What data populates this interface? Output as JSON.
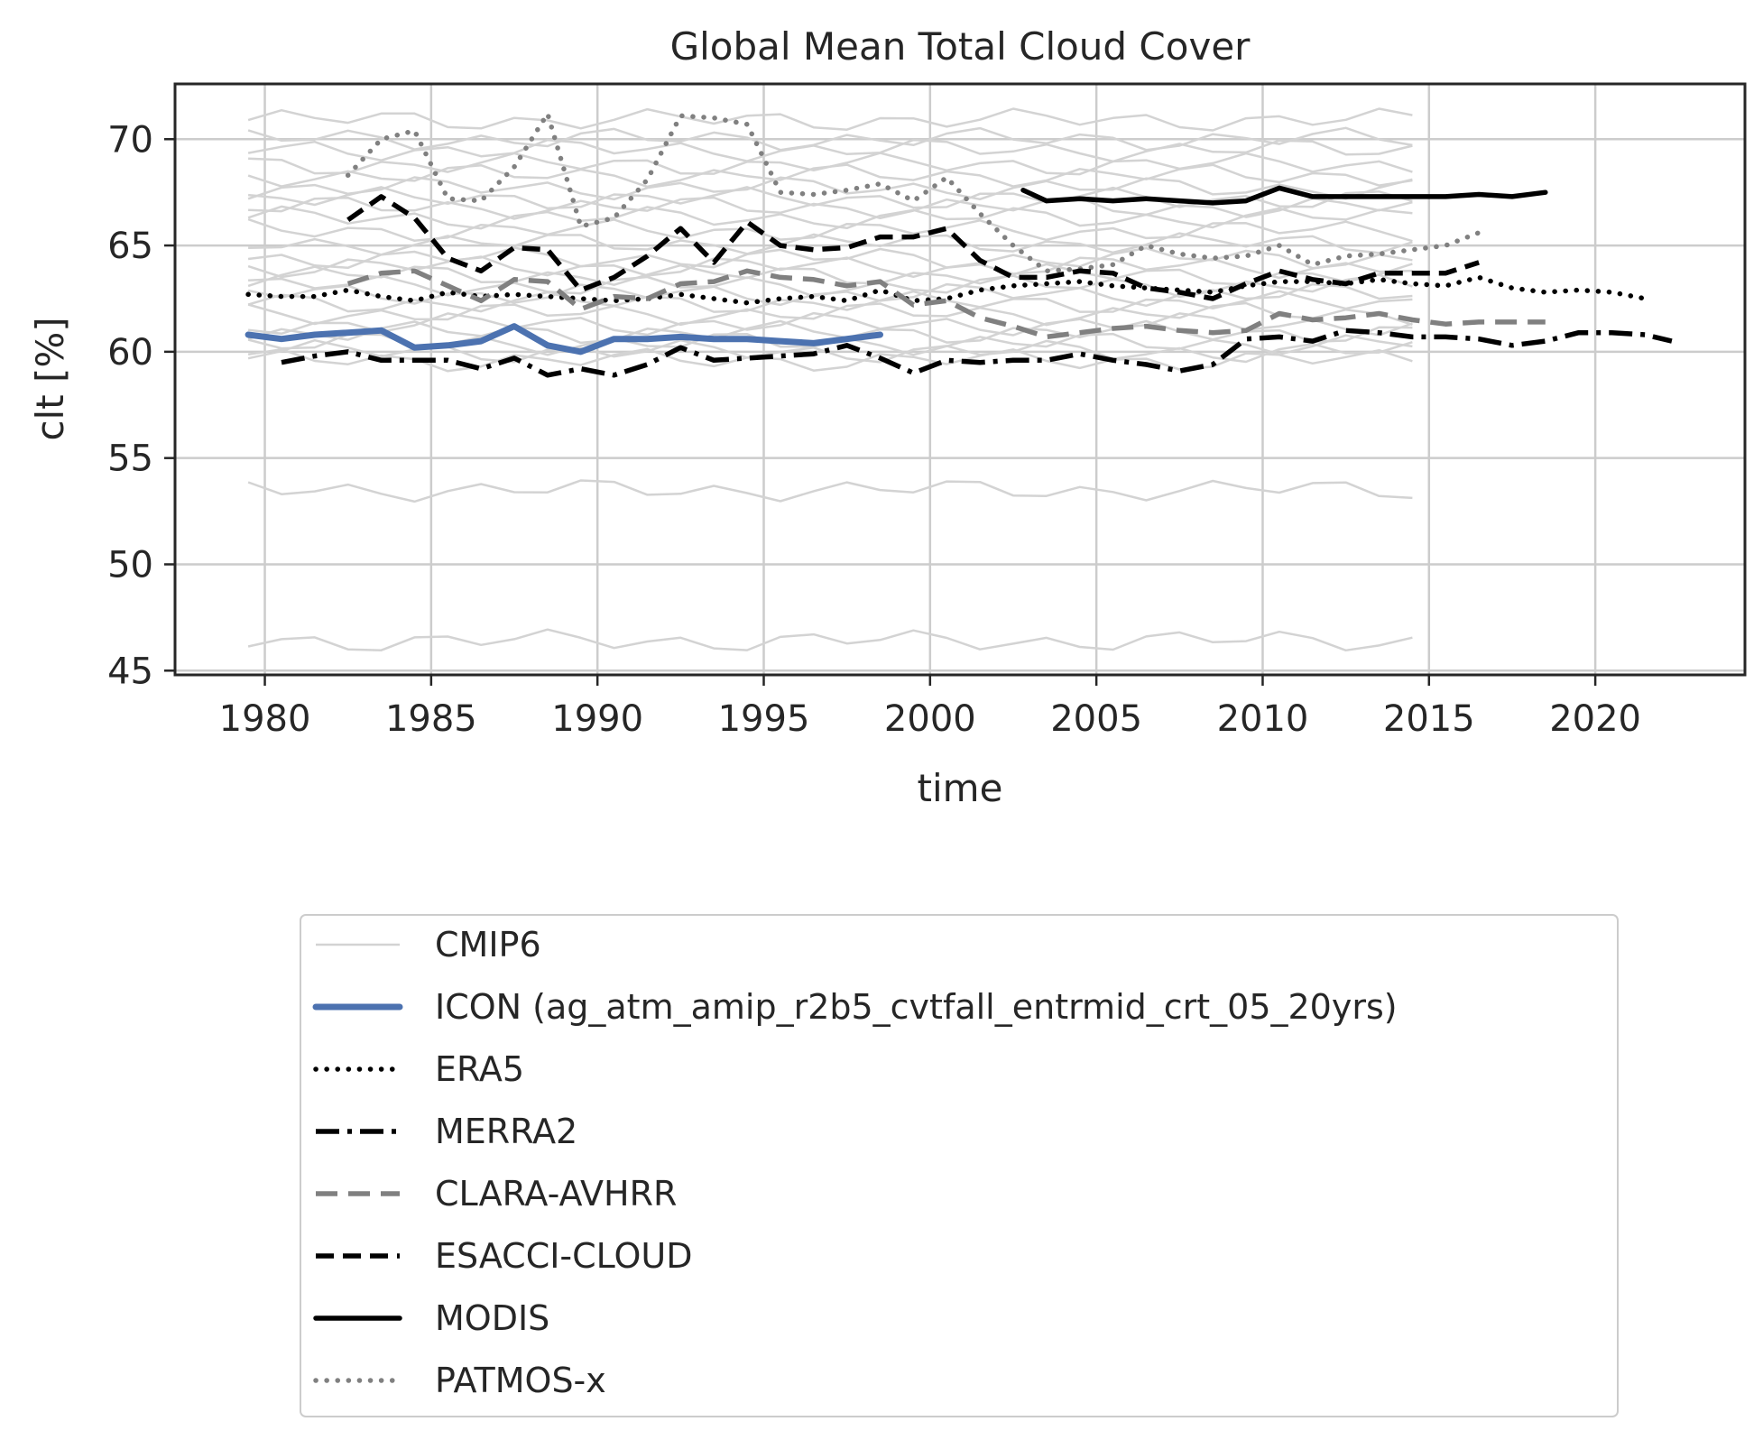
{
  "chart_data": {
    "type": "line",
    "title": "Global Mean Total Cloud Cover",
    "xlabel": "time",
    "ylabel": "clt [%]",
    "xlim": [
      1977.3,
      2024.5
    ],
    "ylim": [
      44.8,
      72.6
    ],
    "xticks": [
      1980,
      1985,
      1990,
      1995,
      2000,
      2005,
      2010,
      2015,
      2020
    ],
    "yticks": [
      45,
      50,
      55,
      60,
      65,
      70
    ],
    "grid": true,
    "legend_position": "below plot",
    "cmip6_years": [
      1979.5,
      1980.5,
      1981.5,
      1982.5,
      1983.5,
      1984.5,
      1985.5,
      1986.5,
      1987.5,
      1988.5,
      1989.5,
      1990.5,
      1991.5,
      1992.5,
      1993.5,
      1994.5,
      1995.5,
      1996.5,
      1997.5,
      1998.5,
      1999.5,
      2000.5,
      2001.5,
      2002.5,
      2003.5,
      2004.5,
      2005.5,
      2006.5,
      2007.5,
      2008.5,
      2009.5,
      2010.5,
      2011.5,
      2012.5,
      2013.5,
      2014.5
    ],
    "cmip6_levels": [
      70.9,
      70.0,
      69.5,
      68.8,
      68.3,
      67.7,
      67.2,
      66.8,
      66.3,
      65.7,
      65.1,
      64.4,
      64.0,
      63.6,
      63.1,
      62.7,
      62.3,
      61.8,
      61.3,
      60.9,
      60.4,
      60.0,
      59.6,
      53.5,
      46.4
    ],
    "series": [
      {
        "name": "CMIP6",
        "style": "cmip6",
        "color": "#d3d3d3"
      },
      {
        "name": "ICON (ag_atm_amip_r2b5_cvtfall_entrmid_crt_05_20yrs)",
        "style": "solid-thick",
        "color": "#4c72b0",
        "x": [
          1979.5,
          1980.5,
          1981.5,
          1982.5,
          1983.5,
          1984.5,
          1985.5,
          1986.5,
          1987.5,
          1988.5,
          1989.5,
          1990.5,
          1991.5,
          1992.5,
          1993.5,
          1994.5,
          1995.5,
          1996.5,
          1997.5,
          1998.5
        ],
        "y": [
          60.8,
          60.6,
          60.8,
          60.9,
          61.0,
          60.2,
          60.3,
          60.5,
          61.2,
          60.3,
          60.0,
          60.6,
          60.6,
          60.7,
          60.6,
          60.6,
          60.5,
          60.4,
          60.6,
          60.8
        ]
      },
      {
        "name": "ERA5",
        "style": "dotted",
        "color": "#000000",
        "x": [
          1979.5,
          1980.5,
          1981.5,
          1982.5,
          1983.5,
          1984.5,
          1985.5,
          1986.5,
          1987.5,
          1988.5,
          1989.5,
          1990.5,
          1991.5,
          1992.5,
          1993.5,
          1994.5,
          1995.5,
          1996.5,
          1997.5,
          1998.5,
          1999.5,
          2000.5,
          2001.5,
          2002.5,
          2003.5,
          2004.5,
          2005.5,
          2006.5,
          2007.5,
          2008.5,
          2009.5,
          2010.5,
          2011.5,
          2012.5,
          2013.5,
          2014.5,
          2015.5,
          2016.5,
          2017.5,
          2018.5,
          2019.5,
          2020.5,
          2021.5
        ],
        "y": [
          62.7,
          62.6,
          62.6,
          62.9,
          62.6,
          62.4,
          62.8,
          62.6,
          62.7,
          62.6,
          62.5,
          62.4,
          62.5,
          62.7,
          62.5,
          62.3,
          62.5,
          62.6,
          62.4,
          62.9,
          62.4,
          62.5,
          62.9,
          63.1,
          63.2,
          63.3,
          63.1,
          63.0,
          62.9,
          62.8,
          63.1,
          63.3,
          63.3,
          63.2,
          63.4,
          63.2,
          63.1,
          63.5,
          63.0,
          62.8,
          62.9,
          62.8,
          62.5
        ]
      },
      {
        "name": "MERRA2",
        "style": "dashdot",
        "color": "#000000",
        "x": [
          1980.5,
          1981.5,
          1982.5,
          1983.5,
          1984.5,
          1985.5,
          1986.5,
          1987.5,
          1988.5,
          1989.5,
          1990.5,
          1991.5,
          1992.5,
          1993.5,
          1994.5,
          1995.5,
          1996.5,
          1997.5,
          1998.5,
          1999.5,
          2000.5,
          2001.5,
          2002.5,
          2003.5,
          2004.5,
          2005.5,
          2006.5,
          2007.5,
          2008.5,
          2009.5,
          2010.5,
          2011.5,
          2012.5,
          2013.5,
          2014.5,
          2015.5,
          2016.5,
          2017.5,
          2018.5,
          2019.5,
          2020.5,
          2021.5,
          2022.3
        ],
        "y": [
          59.5,
          59.8,
          60.0,
          59.6,
          59.6,
          59.6,
          59.2,
          59.7,
          58.9,
          59.2,
          58.9,
          59.4,
          60.2,
          59.6,
          59.7,
          59.8,
          59.9,
          60.3,
          59.7,
          59.0,
          59.6,
          59.5,
          59.6,
          59.6,
          59.9,
          59.6,
          59.4,
          59.1,
          59.4,
          60.6,
          60.7,
          60.5,
          61.0,
          60.9,
          60.7,
          60.7,
          60.6,
          60.3,
          60.5,
          60.9,
          60.9,
          60.8,
          60.5
        ]
      },
      {
        "name": "CLARA-AVHRR",
        "style": "dashed-gray",
        "color": "#808080",
        "x": [
          1982.5,
          1983.5,
          1984.5,
          1985.5,
          1986.5,
          1987.5,
          1988.5,
          1989.5,
          1990.5,
          1991.5,
          1992.5,
          1993.5,
          1994.5,
          1995.5,
          1996.5,
          1997.5,
          1998.5,
          1999.5,
          2000.5,
          2001.5,
          2002.5,
          2003.5,
          2004.5,
          2005.5,
          2006.5,
          2007.5,
          2008.5,
          2009.5,
          2010.5,
          2011.5,
          2012.5,
          2013.5,
          2014.5,
          2015.5,
          2016.5,
          2017.5,
          2018.5
        ],
        "y": [
          63.2,
          63.7,
          63.8,
          63.1,
          62.4,
          63.4,
          63.3,
          62.0,
          62.6,
          62.5,
          63.2,
          63.3,
          63.8,
          63.5,
          63.4,
          63.1,
          63.3,
          62.2,
          62.4,
          61.6,
          61.2,
          60.7,
          60.9,
          61.1,
          61.2,
          61.0,
          60.9,
          61.0,
          61.8,
          61.5,
          61.6,
          61.8,
          61.5,
          61.3,
          61.4,
          61.4,
          61.4
        ]
      },
      {
        "name": "ESACCI-CLOUD",
        "style": "dashed-black",
        "color": "#000000",
        "x": [
          1982.5,
          1983.5,
          1984.5,
          1985.5,
          1986.5,
          1987.5,
          1988.5,
          1989.5,
          1990.5,
          1991.5,
          1992.5,
          1993.5,
          1994.5,
          1995.5,
          1996.5,
          1997.5,
          1998.5,
          1999.5,
          2000.5,
          2001.5,
          2002.5,
          2003.5,
          2004.5,
          2005.5,
          2006.5,
          2007.5,
          2008.5,
          2009.5,
          2010.5,
          2011.5,
          2012.5,
          2013.5,
          2014.5,
          2015.5,
          2016.5
        ],
        "y": [
          66.2,
          67.3,
          66.3,
          64.4,
          63.8,
          64.9,
          64.8,
          62.9,
          63.5,
          64.5,
          65.8,
          64.2,
          66.1,
          65.0,
          64.8,
          64.9,
          65.4,
          65.4,
          65.8,
          64.3,
          63.5,
          63.5,
          63.8,
          63.7,
          63.0,
          62.8,
          62.5,
          63.2,
          63.8,
          63.4,
          63.2,
          63.7,
          63.7,
          63.7,
          64.2
        ]
      },
      {
        "name": "MODIS",
        "style": "solid-black",
        "color": "#000000",
        "x": [
          2002.8,
          2003.5,
          2004.5,
          2005.5,
          2006.5,
          2007.5,
          2008.5,
          2009.5,
          2010.5,
          2011.5,
          2012.5,
          2013.5,
          2014.5,
          2015.5,
          2016.5,
          2017.5,
          2018.5
        ],
        "y": [
          67.6,
          67.1,
          67.2,
          67.1,
          67.2,
          67.1,
          67.0,
          67.1,
          67.7,
          67.3,
          67.3,
          67.3,
          67.3,
          67.3,
          67.4,
          67.3,
          67.5
        ]
      },
      {
        "name": "PATMOS-x",
        "style": "dotted-gray",
        "color": "#808080",
        "x": [
          1982.5,
          1983.5,
          1984.5,
          1985.5,
          1986.5,
          1987.5,
          1988.5,
          1989.5,
          1990.5,
          1991.5,
          1992.5,
          1993.5,
          1994.5,
          1995.5,
          1996.5,
          1997.5,
          1998.5,
          1999.5,
          2000.5,
          2001.5,
          2002.5,
          2003.5,
          2004.5,
          2005.5,
          2006.5,
          2007.5,
          2008.5,
          2009.5,
          2010.5,
          2011.5,
          2012.5,
          2013.5,
          2014.5,
          2015.5,
          2016.5
        ],
        "y": [
          68.3,
          70.0,
          70.4,
          67.2,
          67.1,
          68.7,
          71.2,
          65.9,
          66.3,
          68.1,
          71.1,
          71.0,
          70.7,
          67.5,
          67.4,
          67.6,
          67.9,
          67.1,
          68.2,
          66.5,
          65.0,
          63.8,
          63.9,
          64.1,
          65.0,
          64.6,
          64.4,
          64.5,
          65.0,
          64.1,
          64.5,
          64.6,
          64.8,
          65.0,
          65.6
        ]
      }
    ]
  }
}
